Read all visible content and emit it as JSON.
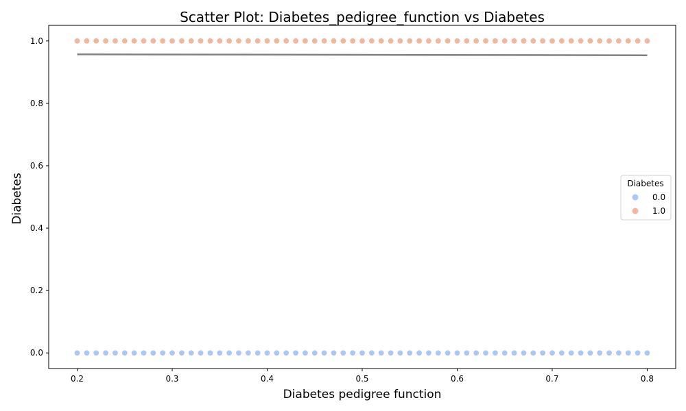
{
  "chart_data": {
    "type": "scatter",
    "title": "Scatter Plot: Diabetes_pedigree_function vs Diabetes",
    "xlabel": "Diabetes pedigree function",
    "ylabel": "Diabetes",
    "xlim": [
      0.17,
      0.83
    ],
    "ylim": [
      -0.05,
      1.05
    ],
    "xticks": [
      "0.2",
      "0.3",
      "0.4",
      "0.5",
      "0.6",
      "0.7",
      "0.8"
    ],
    "yticks": [
      "0.0",
      "0.2",
      "0.4",
      "0.6",
      "0.8",
      "1.0"
    ],
    "grid": false,
    "legend": {
      "title": "Diabetes",
      "position": "center-right",
      "entries": [
        "0.0",
        "1.0"
      ]
    },
    "series": [
      {
        "name": "0.0",
        "color": "#aac8f5",
        "x": [
          0.2,
          0.21,
          0.22,
          0.23,
          0.24,
          0.25,
          0.26,
          0.27,
          0.28,
          0.29,
          0.3,
          0.31,
          0.32,
          0.33,
          0.34,
          0.35,
          0.36,
          0.37,
          0.38,
          0.39,
          0.4,
          0.41,
          0.42,
          0.43,
          0.44,
          0.45,
          0.46,
          0.47,
          0.48,
          0.49,
          0.5,
          0.51,
          0.52,
          0.53,
          0.54,
          0.55,
          0.56,
          0.57,
          0.58,
          0.59,
          0.6,
          0.61,
          0.62,
          0.63,
          0.64,
          0.65,
          0.66,
          0.67,
          0.68,
          0.69,
          0.7,
          0.71,
          0.72,
          0.73,
          0.74,
          0.75,
          0.76,
          0.77,
          0.78,
          0.79,
          0.8
        ],
        "y_value": 0.0
      },
      {
        "name": "1.0",
        "color": "#f2b79a",
        "x": [
          0.2,
          0.21,
          0.22,
          0.23,
          0.24,
          0.25,
          0.26,
          0.27,
          0.28,
          0.29,
          0.3,
          0.31,
          0.32,
          0.33,
          0.34,
          0.35,
          0.36,
          0.37,
          0.38,
          0.39,
          0.4,
          0.41,
          0.42,
          0.43,
          0.44,
          0.45,
          0.46,
          0.47,
          0.48,
          0.49,
          0.5,
          0.51,
          0.52,
          0.53,
          0.54,
          0.55,
          0.56,
          0.57,
          0.58,
          0.59,
          0.6,
          0.61,
          0.62,
          0.63,
          0.64,
          0.65,
          0.66,
          0.67,
          0.68,
          0.69,
          0.7,
          0.71,
          0.72,
          0.73,
          0.74,
          0.75,
          0.76,
          0.77,
          0.78,
          0.79,
          0.8
        ],
        "y_value": 1.0
      }
    ],
    "trend_line": {
      "color": "#808080",
      "x": [
        0.2,
        0.8
      ],
      "y": [
        0.957,
        0.954
      ]
    }
  }
}
